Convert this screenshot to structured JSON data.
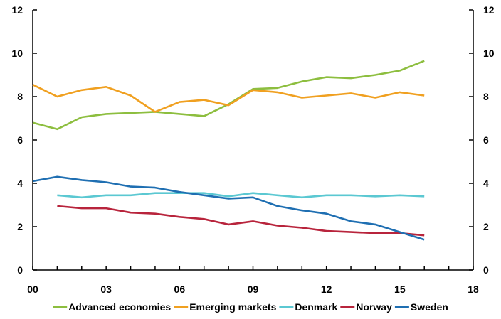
{
  "chart_data": {
    "type": "line",
    "title": "",
    "xlabel": "",
    "ylabel": "",
    "xlim": [
      0,
      18
    ],
    "ylim": [
      0,
      12
    ],
    "x_ticks": [
      {
        "value": 0,
        "label": "00"
      },
      {
        "value": 3,
        "label": "03"
      },
      {
        "value": 6,
        "label": "06"
      },
      {
        "value": 9,
        "label": "09"
      },
      {
        "value": 12,
        "label": "12"
      },
      {
        "value": 15,
        "label": "15"
      },
      {
        "value": 18,
        "label": "18"
      }
    ],
    "y_ticks": [
      0,
      2,
      4,
      6,
      8,
      10,
      12
    ],
    "grid": false,
    "legend_position": "bottom",
    "series": [
      {
        "name": "Advanced economies",
        "color": "#8DBE3F",
        "x": [
          0,
          1,
          2,
          3,
          4,
          5,
          6,
          7,
          8,
          9,
          10,
          11,
          12,
          13,
          14,
          15,
          16
        ],
        "values": [
          6.8,
          6.5,
          7.05,
          7.2,
          7.25,
          7.3,
          7.2,
          7.1,
          7.65,
          8.35,
          8.4,
          8.7,
          8.9,
          8.85,
          9.0,
          9.2,
          9.65
        ]
      },
      {
        "name": "Emerging markets",
        "color": "#F0A020",
        "x": [
          0,
          1,
          2,
          3,
          4,
          5,
          6,
          7,
          8,
          9,
          10,
          11,
          12,
          13,
          14,
          15,
          16
        ],
        "values": [
          8.55,
          8.0,
          8.3,
          8.45,
          8.05,
          7.3,
          7.75,
          7.85,
          7.6,
          8.3,
          8.2,
          7.95,
          8.05,
          8.15,
          7.95,
          8.2,
          8.05
        ]
      },
      {
        "name": "Denmark",
        "color": "#5BC8D2",
        "x": [
          1,
          2,
          3,
          4,
          5,
          6,
          7,
          8,
          9,
          10,
          11,
          12,
          13,
          14,
          15,
          16
        ],
        "values": [
          3.45,
          3.35,
          3.45,
          3.45,
          3.55,
          3.55,
          3.55,
          3.4,
          3.55,
          3.45,
          3.35,
          3.45,
          3.45,
          3.4,
          3.45,
          3.4
        ]
      },
      {
        "name": "Norway",
        "color": "#B8243C",
        "x": [
          1,
          2,
          3,
          4,
          5,
          6,
          7,
          8,
          9,
          10,
          11,
          12,
          13,
          14,
          15,
          16
        ],
        "values": [
          2.95,
          2.85,
          2.85,
          2.65,
          2.6,
          2.45,
          2.35,
          2.1,
          2.25,
          2.05,
          1.95,
          1.8,
          1.75,
          1.7,
          1.7,
          1.6
        ]
      },
      {
        "name": "Sweden",
        "color": "#1F6FB2",
        "x": [
          0,
          1,
          2,
          3,
          4,
          5,
          6,
          7,
          8,
          9,
          10,
          11,
          12,
          13,
          14,
          15,
          16
        ],
        "values": [
          4.1,
          4.3,
          4.15,
          4.05,
          3.85,
          3.8,
          3.6,
          3.45,
          3.3,
          3.35,
          2.95,
          2.75,
          2.6,
          2.25,
          2.1,
          1.75,
          1.4
        ]
      }
    ]
  }
}
